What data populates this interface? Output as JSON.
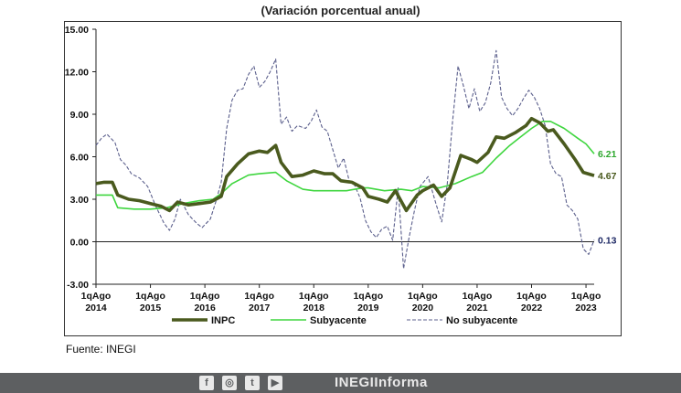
{
  "chart_data": {
    "type": "line",
    "subtitle": "(Variación porcentual anual)",
    "ylim": [
      -3,
      15
    ],
    "yticks": [
      "15.00",
      "12.00",
      "9.00",
      "6.00",
      "3.00",
      "0.00",
      "-3.00"
    ],
    "xticks": [
      {
        "line1": "1qAgo",
        "line2": "2014",
        "x": 2014.6
      },
      {
        "line1": "1qAgo",
        "line2": "2015",
        "x": 2015.6
      },
      {
        "line1": "1qAgo",
        "line2": "2016",
        "x": 2016.6
      },
      {
        "line1": "1qAgo",
        "line2": "2017",
        "x": 2017.6
      },
      {
        "line1": "1qAgo",
        "line2": "2018",
        "x": 2018.6
      },
      {
        "line1": "1qAgo",
        "line2": "2019",
        "x": 2019.6
      },
      {
        "line1": "1qAgo",
        "line2": "2020",
        "x": 2020.6
      },
      {
        "line1": "1qAgo",
        "line2": "2021",
        "x": 2021.6
      },
      {
        "line1": "1qAgo",
        "line2": "2022",
        "x": 2022.6
      },
      {
        "line1": "1qAgo",
        "line2": "2023",
        "x": 2023.6
      }
    ],
    "xlim": [
      2014.6,
      2023.75
    ],
    "series": [
      {
        "name": "INPC",
        "color": "#4a5a1e",
        "style": "solid-thick",
        "end_label": "4.67",
        "points": [
          [
            2014.6,
            4.1
          ],
          [
            2014.75,
            4.2
          ],
          [
            2014.9,
            4.2
          ],
          [
            2015.0,
            3.3
          ],
          [
            2015.2,
            3.0
          ],
          [
            2015.4,
            2.9
          ],
          [
            2015.6,
            2.7
          ],
          [
            2015.8,
            2.5
          ],
          [
            2015.95,
            2.2
          ],
          [
            2016.1,
            2.8
          ],
          [
            2016.3,
            2.6
          ],
          [
            2016.5,
            2.7
          ],
          [
            2016.7,
            2.8
          ],
          [
            2016.9,
            3.2
          ],
          [
            2017.0,
            4.6
          ],
          [
            2017.2,
            5.5
          ],
          [
            2017.4,
            6.2
          ],
          [
            2017.6,
            6.4
          ],
          [
            2017.75,
            6.3
          ],
          [
            2017.9,
            6.8
          ],
          [
            2018.0,
            5.6
          ],
          [
            2018.2,
            4.6
          ],
          [
            2018.4,
            4.7
          ],
          [
            2018.6,
            5.0
          ],
          [
            2018.8,
            4.8
          ],
          [
            2018.95,
            4.8
          ],
          [
            2019.1,
            4.3
          ],
          [
            2019.3,
            4.2
          ],
          [
            2019.5,
            3.8
          ],
          [
            2019.6,
            3.2
          ],
          [
            2019.8,
            3.0
          ],
          [
            2019.95,
            2.8
          ],
          [
            2020.1,
            3.6
          ],
          [
            2020.3,
            2.2
          ],
          [
            2020.5,
            3.3
          ],
          [
            2020.6,
            3.6
          ],
          [
            2020.8,
            4.0
          ],
          [
            2020.95,
            3.2
          ],
          [
            2021.1,
            3.8
          ],
          [
            2021.3,
            6.1
          ],
          [
            2021.5,
            5.8
          ],
          [
            2021.6,
            5.6
          ],
          [
            2021.8,
            6.3
          ],
          [
            2021.95,
            7.4
          ],
          [
            2022.1,
            7.3
          ],
          [
            2022.3,
            7.7
          ],
          [
            2022.5,
            8.2
          ],
          [
            2022.6,
            8.7
          ],
          [
            2022.75,
            8.4
          ],
          [
            2022.9,
            7.8
          ],
          [
            2023.0,
            7.9
          ],
          [
            2023.2,
            6.9
          ],
          [
            2023.4,
            5.8
          ],
          [
            2023.55,
            4.9
          ],
          [
            2023.75,
            4.67
          ]
        ]
      },
      {
        "name": "Subyacente",
        "color": "#3fd63f",
        "style": "solid-thin",
        "end_label": "6.21",
        "points": [
          [
            2014.6,
            3.3
          ],
          [
            2014.9,
            3.3
          ],
          [
            2015.0,
            2.4
          ],
          [
            2015.3,
            2.3
          ],
          [
            2015.6,
            2.3
          ],
          [
            2015.9,
            2.4
          ],
          [
            2016.2,
            2.7
          ],
          [
            2016.5,
            2.9
          ],
          [
            2016.75,
            3.0
          ],
          [
            2016.9,
            3.4
          ],
          [
            2017.1,
            4.1
          ],
          [
            2017.4,
            4.7
          ],
          [
            2017.6,
            4.8
          ],
          [
            2017.9,
            4.9
          ],
          [
            2018.1,
            4.3
          ],
          [
            2018.4,
            3.7
          ],
          [
            2018.6,
            3.6
          ],
          [
            2018.9,
            3.6
          ],
          [
            2019.2,
            3.6
          ],
          [
            2019.5,
            3.8
          ],
          [
            2019.6,
            3.8
          ],
          [
            2019.9,
            3.6
          ],
          [
            2020.2,
            3.7
          ],
          [
            2020.4,
            3.6
          ],
          [
            2020.6,
            3.9
          ],
          [
            2020.9,
            3.8
          ],
          [
            2021.2,
            4.1
          ],
          [
            2021.5,
            4.6
          ],
          [
            2021.7,
            4.9
          ],
          [
            2021.95,
            5.9
          ],
          [
            2022.2,
            6.8
          ],
          [
            2022.4,
            7.4
          ],
          [
            2022.6,
            8.0
          ],
          [
            2022.8,
            8.5
          ],
          [
            2022.95,
            8.5
          ],
          [
            2023.2,
            8.0
          ],
          [
            2023.45,
            7.3
          ],
          [
            2023.6,
            6.9
          ],
          [
            2023.75,
            6.21
          ]
        ]
      },
      {
        "name": "No subyacente",
        "color": "#5b5f8c",
        "style": "dashed",
        "end_label": "0.13",
        "points": [
          [
            2014.6,
            6.8
          ],
          [
            2014.7,
            7.3
          ],
          [
            2014.8,
            7.6
          ],
          [
            2014.95,
            7.0
          ],
          [
            2015.05,
            5.8
          ],
          [
            2015.15,
            5.4
          ],
          [
            2015.25,
            4.8
          ],
          [
            2015.4,
            4.5
          ],
          [
            2015.55,
            3.9
          ],
          [
            2015.7,
            2.5
          ],
          [
            2015.85,
            1.3
          ],
          [
            2015.95,
            0.8
          ],
          [
            2016.05,
            1.6
          ],
          [
            2016.15,
            3.0
          ],
          [
            2016.3,
            1.9
          ],
          [
            2016.45,
            1.3
          ],
          [
            2016.55,
            1.0
          ],
          [
            2016.7,
            1.6
          ],
          [
            2016.8,
            2.8
          ],
          [
            2016.9,
            4.2
          ],
          [
            2017.0,
            8.0
          ],
          [
            2017.1,
            10.0
          ],
          [
            2017.2,
            10.7
          ],
          [
            2017.3,
            10.8
          ],
          [
            2017.4,
            11.8
          ],
          [
            2017.5,
            12.4
          ],
          [
            2017.6,
            10.9
          ],
          [
            2017.7,
            11.3
          ],
          [
            2017.8,
            12.0
          ],
          [
            2017.9,
            12.9
          ],
          [
            2018.0,
            8.3
          ],
          [
            2018.1,
            8.8
          ],
          [
            2018.2,
            7.8
          ],
          [
            2018.3,
            8.2
          ],
          [
            2018.45,
            8.0
          ],
          [
            2018.55,
            8.5
          ],
          [
            2018.65,
            9.3
          ],
          [
            2018.75,
            8.1
          ],
          [
            2018.85,
            7.8
          ],
          [
            2018.95,
            6.5
          ],
          [
            2019.05,
            5.2
          ],
          [
            2019.15,
            5.9
          ],
          [
            2019.25,
            4.3
          ],
          [
            2019.35,
            4.0
          ],
          [
            2019.45,
            3.1
          ],
          [
            2019.55,
            1.5
          ],
          [
            2019.65,
            0.7
          ],
          [
            2019.75,
            0.3
          ],
          [
            2019.85,
            0.9
          ],
          [
            2019.95,
            1.1
          ],
          [
            2020.05,
            0.1
          ],
          [
            2020.15,
            3.8
          ],
          [
            2020.25,
            -1.9
          ],
          [
            2020.35,
            0.3
          ],
          [
            2020.45,
            2.2
          ],
          [
            2020.55,
            3.9
          ],
          [
            2020.7,
            4.6
          ],
          [
            2020.85,
            2.6
          ],
          [
            2020.95,
            1.4
          ],
          [
            2021.05,
            4.0
          ],
          [
            2021.15,
            8.5
          ],
          [
            2021.25,
            12.4
          ],
          [
            2021.35,
            11.0
          ],
          [
            2021.45,
            9.4
          ],
          [
            2021.55,
            10.8
          ],
          [
            2021.65,
            9.2
          ],
          [
            2021.75,
            9.8
          ],
          [
            2021.85,
            11.2
          ],
          [
            2021.95,
            13.5
          ],
          [
            2022.05,
            10.2
          ],
          [
            2022.15,
            9.4
          ],
          [
            2022.25,
            8.9
          ],
          [
            2022.35,
            9.4
          ],
          [
            2022.45,
            10.1
          ],
          [
            2022.55,
            10.7
          ],
          [
            2022.65,
            10.2
          ],
          [
            2022.75,
            9.4
          ],
          [
            2022.85,
            8.2
          ],
          [
            2022.95,
            5.5
          ],
          [
            2023.05,
            4.8
          ],
          [
            2023.15,
            4.6
          ],
          [
            2023.25,
            2.6
          ],
          [
            2023.35,
            2.2
          ],
          [
            2023.45,
            1.6
          ],
          [
            2023.55,
            -0.5
          ],
          [
            2023.65,
            -0.9
          ],
          [
            2023.75,
            0.13
          ]
        ]
      }
    ],
    "legend": [
      "INPC",
      "Subyacente",
      "No subyacente"
    ],
    "legend_position": "bottom"
  },
  "source": "Fuente: INEGI",
  "footer": {
    "background": "#5d5f61",
    "icons": [
      {
        "name": "facebook-icon",
        "glyph": "f"
      },
      {
        "name": "instagram-icon",
        "glyph": "◎"
      },
      {
        "name": "twitter-icon",
        "glyph": "t"
      },
      {
        "name": "youtube-icon",
        "glyph": "▶"
      }
    ],
    "handle": "INEGIInforma"
  }
}
